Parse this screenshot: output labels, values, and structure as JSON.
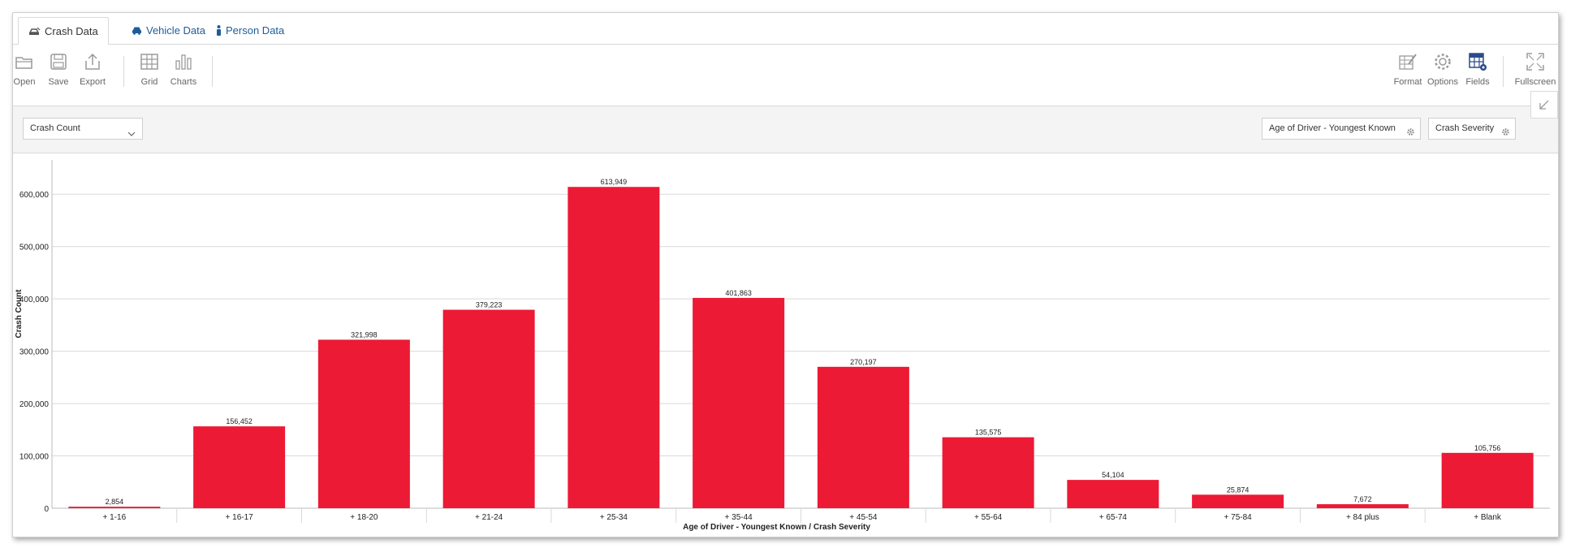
{
  "tabs": [
    {
      "label": "Crash Data",
      "icon": "car-crash-icon",
      "active": true
    },
    {
      "label": "Vehicle Data",
      "icon": "car-icon",
      "active": false
    },
    {
      "label": "Person Data",
      "icon": "person-icon",
      "active": false
    }
  ],
  "toolbar": {
    "open": "Open",
    "save": "Save",
    "export": "Export",
    "grid": "Grid",
    "charts": "Charts",
    "format": "Format",
    "options": "Options",
    "fields": "Fields",
    "fullscreen": "Fullscreen"
  },
  "filters": {
    "measure": "Crash Count",
    "row_field": "Age of Driver - Youngest Known",
    "column_field": "Crash Severity"
  },
  "colors": {
    "bar": "#ec1a35",
    "accent": "#1f5c99",
    "fields_icon": "#2a4c8a"
  },
  "chart_data": {
    "type": "bar",
    "categories": [
      "+ 1-16",
      "+ 16-17",
      "+ 18-20",
      "+ 21-24",
      "+ 25-34",
      "+ 35-44",
      "+ 45-54",
      "+ 55-64",
      "+ 65-74",
      "+ 75-84",
      "+ 84 plus",
      "+ Blank"
    ],
    "values": [
      2854,
      156452,
      321998,
      379223,
      613949,
      401863,
      270197,
      135575,
      54104,
      25874,
      7672,
      105756
    ],
    "value_labels": [
      "2,854",
      "156,452",
      "321,998",
      "379,223",
      "613,949",
      "401,863",
      "270,197",
      "135,575",
      "54,104",
      "25,874",
      "7,672",
      "105,756"
    ],
    "xlabel": "Age of Driver - Youngest Known / Crash Severity",
    "ylabel": "Crash Count",
    "yticks": [
      0,
      100000,
      200000,
      300000,
      400000,
      500000,
      600000
    ],
    "ytick_labels": [
      "0",
      "100,000",
      "200,000",
      "300,000",
      "400,000",
      "500,000",
      "600,000"
    ],
    "ylim": [
      0,
      650000
    ],
    "grid": true
  }
}
